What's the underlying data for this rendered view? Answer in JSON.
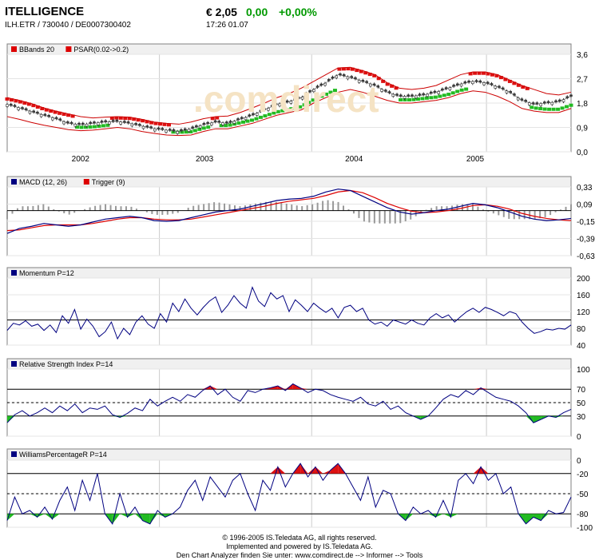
{
  "header": {
    "name": "ITELLIGENCE",
    "ids": "ILH.ETR  /  730040  /  DE0007300402",
    "price": "€ 2,05",
    "change": "0,00",
    "change_pct": "+0,00%",
    "time": "17:26   01.07",
    "change_color": "#009900"
  },
  "watermark": ".comdirect",
  "footer": {
    "line1": "© 1996-2005 IS.Teledata AG, all rights reserved.",
    "line2": "Implemented and powered by IS.Teledata AG.",
    "line3": "Den Chart Analyzer finden Sie unter: www.comdirect.de --> Informer --> Tools"
  },
  "chart_data": [
    {
      "type": "line",
      "panel": "price",
      "legend": [
        {
          "label": "BBands 20",
          "color": "#dd0000"
        },
        {
          "label": "PSAR(0.02->0.2)",
          "color": "#dd0000"
        }
      ],
      "x_labels": [
        "2002",
        "2003",
        "2004",
        "2005"
      ],
      "x_label_at": [
        0.13,
        0.35,
        0.615,
        0.83
      ],
      "ylim": [
        0,
        3.6
      ],
      "y_ticks": [
        "3,6",
        "2,7",
        "1,8",
        "0,9",
        "0,0"
      ],
      "y_tick_values": [
        3.6,
        2.7,
        1.8,
        0.9,
        0.0
      ],
      "series": [
        {
          "role": "close",
          "color": "#333333",
          "values": [
            1.75,
            1.62,
            1.48,
            1.35,
            1.22,
            1.05,
            1.0,
            1.05,
            1.1,
            1.12,
            1.05,
            0.95,
            0.85,
            0.8,
            0.75,
            0.85,
            1.0,
            1.1,
            1.05,
            1.2,
            1.35,
            1.55,
            1.75,
            1.85,
            2.0,
            2.3,
            2.55,
            2.85,
            2.75,
            2.6,
            2.45,
            2.2,
            2.05,
            2.05,
            2.1,
            2.2,
            2.35,
            2.5,
            2.6,
            2.55,
            2.4,
            2.2,
            1.9,
            1.75,
            1.8,
            1.85,
            2.05
          ]
        },
        {
          "role": "bb_upper",
          "color": "#cc0000",
          "values": [
            2.0,
            1.9,
            1.78,
            1.62,
            1.5,
            1.4,
            1.3,
            1.25,
            1.28,
            1.3,
            1.28,
            1.2,
            1.1,
            1.05,
            1.02,
            1.1,
            1.22,
            1.3,
            1.32,
            1.45,
            1.62,
            1.8,
            2.0,
            2.15,
            2.35,
            2.6,
            2.85,
            3.1,
            3.12,
            3.0,
            2.85,
            2.55,
            2.35,
            2.3,
            2.35,
            2.45,
            2.65,
            2.85,
            2.95,
            2.95,
            2.85,
            2.65,
            2.45,
            2.3,
            2.15,
            2.1,
            2.2
          ]
        },
        {
          "role": "bb_lower",
          "color": "#cc0000",
          "values": [
            1.3,
            1.2,
            1.08,
            0.98,
            0.9,
            0.82,
            0.78,
            0.8,
            0.85,
            0.9,
            0.85,
            0.75,
            0.68,
            0.62,
            0.6,
            0.62,
            0.75,
            0.85,
            0.85,
            0.95,
            1.05,
            1.2,
            1.35,
            1.45,
            1.55,
            1.8,
            2.0,
            2.2,
            2.3,
            2.2,
            2.05,
            1.9,
            1.8,
            1.8,
            1.85,
            1.9,
            2.0,
            2.15,
            2.25,
            2.2,
            2.05,
            1.85,
            1.6,
            1.5,
            1.45,
            1.45,
            1.6
          ]
        }
      ]
    },
    {
      "type": "line",
      "panel": "macd",
      "legend": [
        {
          "label": "MACD (12, 26)",
          "color": "#000080"
        },
        {
          "label": "Trigger (9)",
          "color": "#dd0000"
        }
      ],
      "ylim": [
        -0.63,
        0.33
      ],
      "y_ticks": [
        "0,33",
        "0,09",
        "-0,15",
        "-0,39",
        "-0,63"
      ],
      "y_tick_values": [
        0.33,
        0.09,
        -0.15,
        -0.39,
        -0.63
      ],
      "series": [
        {
          "name": "MACD (12, 26)",
          "color": "#000080",
          "values": [
            -0.32,
            -0.25,
            -0.22,
            -0.18,
            -0.2,
            -0.22,
            -0.2,
            -0.16,
            -0.12,
            -0.1,
            -0.08,
            -0.1,
            -0.14,
            -0.15,
            -0.14,
            -0.1,
            -0.06,
            -0.02,
            0.0,
            0.02,
            0.06,
            0.1,
            0.14,
            0.16,
            0.17,
            0.2,
            0.26,
            0.3,
            0.28,
            0.2,
            0.12,
            0.04,
            -0.02,
            -0.05,
            -0.03,
            0.0,
            0.02,
            0.06,
            0.1,
            0.08,
            0.04,
            -0.02,
            -0.08,
            -0.12,
            -0.14,
            -0.13,
            -0.11
          ]
        },
        {
          "name": "Trigger (9)",
          "color": "#dd0000",
          "values": [
            -0.28,
            -0.27,
            -0.24,
            -0.21,
            -0.2,
            -0.2,
            -0.2,
            -0.18,
            -0.15,
            -0.12,
            -0.1,
            -0.1,
            -0.12,
            -0.13,
            -0.13,
            -0.12,
            -0.09,
            -0.06,
            -0.03,
            0.0,
            0.03,
            0.06,
            0.1,
            0.13,
            0.15,
            0.17,
            0.21,
            0.26,
            0.28,
            0.25,
            0.18,
            0.1,
            0.04,
            -0.01,
            -0.03,
            -0.02,
            0.0,
            0.03,
            0.07,
            0.08,
            0.06,
            0.02,
            -0.04,
            -0.08,
            -0.11,
            -0.13,
            -0.14
          ]
        }
      ]
    },
    {
      "type": "line",
      "panel": "momentum",
      "legend": [
        {
          "label": "Momentum P=12",
          "color": "#000080"
        }
      ],
      "ylim": [
        40,
        200
      ],
      "y_ticks": [
        "200",
        "160",
        "120",
        "80",
        "40"
      ],
      "y_tick_values": [
        200,
        160,
        120,
        80,
        40
      ],
      "reference_lines": [
        100
      ],
      "series": [
        {
          "name": "Momentum P=12",
          "color": "#000080",
          "values": [
            75,
            92,
            88,
            98,
            85,
            90,
            75,
            88,
            70,
            110,
            92,
            125,
            78,
            102,
            85,
            60,
            72,
            95,
            55,
            80,
            65,
            95,
            110,
            90,
            80,
            115,
            95,
            140,
            120,
            150,
            128,
            112,
            130,
            145,
            155,
            118,
            135,
            158,
            140,
            128,
            178,
            145,
            132,
            165,
            150,
            158,
            120,
            148,
            135,
            120,
            140,
            128,
            118,
            128,
            105,
            130,
            135,
            120,
            128,
            100,
            90,
            95,
            85,
            100,
            95,
            90,
            100,
            92,
            88,
            105,
            115,
            105,
            112,
            95,
            108,
            120,
            128,
            118,
            130,
            125,
            118,
            110,
            120,
            115,
            95,
            80,
            68,
            72,
            78,
            76,
            80,
            78,
            88
          ]
        }
      ]
    },
    {
      "type": "line",
      "panel": "rsi",
      "legend": [
        {
          "label": "Relative Strength Index P=14",
          "color": "#000080"
        }
      ],
      "ylim": [
        0,
        100
      ],
      "y_ticks": [
        "100",
        "70",
        "50",
        "30",
        "0"
      ],
      "y_tick_values": [
        100,
        70,
        50,
        30,
        0
      ],
      "reference_lines": [
        70,
        50,
        30
      ],
      "series": [
        {
          "name": "Relative Strength Index P=14",
          "color": "#000080",
          "values": [
            20,
            32,
            38,
            30,
            35,
            42,
            35,
            45,
            38,
            48,
            35,
            42,
            40,
            45,
            32,
            28,
            34,
            42,
            38,
            55,
            45,
            52,
            58,
            52,
            62,
            58,
            68,
            75,
            62,
            70,
            58,
            52,
            68,
            65,
            70,
            72,
            75,
            68,
            78,
            72,
            65,
            70,
            68,
            62,
            58,
            55,
            52,
            58,
            48,
            45,
            52,
            40,
            45,
            35,
            30,
            25,
            30,
            42,
            55,
            62,
            58,
            68,
            62,
            72,
            65,
            58,
            55,
            52,
            45,
            35,
            20,
            25,
            30,
            28,
            35,
            40
          ]
        }
      ]
    },
    {
      "type": "line",
      "panel": "williams",
      "legend": [
        {
          "label": "WilliamsPercentageR P=14",
          "color": "#000080"
        }
      ],
      "ylim": [
        -100,
        0
      ],
      "y_ticks": [
        "0",
        "-20",
        "-50",
        "-80",
        "-100"
      ],
      "y_tick_values": [
        0,
        -20,
        -50,
        -80,
        -100
      ],
      "reference_lines": [
        -20,
        -50,
        -80
      ],
      "series": [
        {
          "name": "WilliamsPercentageR P=14",
          "color": "#000080",
          "values": [
            -90,
            -55,
            -80,
            -75,
            -85,
            -70,
            -88,
            -60,
            -40,
            -75,
            -30,
            -60,
            -20,
            -80,
            -95,
            -50,
            -85,
            -70,
            -90,
            -95,
            -75,
            -85,
            -80,
            -70,
            -45,
            -30,
            -60,
            -25,
            -40,
            -55,
            -30,
            -20,
            -50,
            -75,
            -30,
            -45,
            -10,
            -40,
            -20,
            -5,
            -25,
            -10,
            -30,
            -15,
            -5,
            -20,
            -40,
            -60,
            -25,
            -70,
            -45,
            -50,
            -80,
            -90,
            -70,
            -80,
            -75,
            -85,
            -60,
            -85,
            -30,
            -20,
            -35,
            -10,
            -30,
            -20,
            -50,
            -40,
            -80,
            -95,
            -85,
            -90,
            -75,
            -80,
            -78,
            -55
          ]
        }
      ]
    }
  ]
}
